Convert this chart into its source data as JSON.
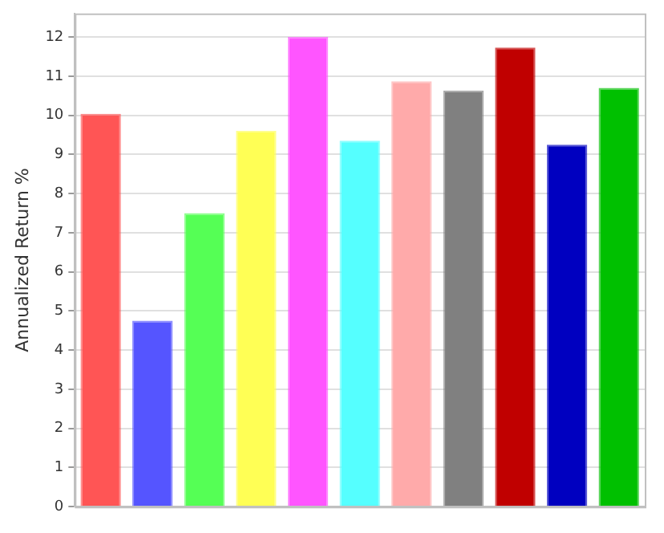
{
  "chart_data": {
    "type": "bar",
    "ylabel": "Annualized Return %",
    "categories": [
      null,
      null,
      null,
      null,
      null,
      null,
      null,
      null,
      null,
      null,
      null
    ],
    "values": [
      10.04,
      4.75,
      7.5,
      9.6,
      12.0,
      9.35,
      10.87,
      10.63,
      11.73,
      9.25,
      10.7
    ],
    "colors": [
      "#ff5555",
      "#5555ff",
      "#55ff55",
      "#ffff55",
      "#ff55ff",
      "#55ffff",
      "#ffaaaa",
      "#808080",
      "#c00000",
      "#0000c0",
      "#00c000"
    ],
    "ylim": [
      0,
      12.6
    ],
    "yticks": [
      0,
      1,
      2,
      3,
      4,
      5,
      6,
      7,
      8,
      9,
      10,
      11,
      12
    ],
    "grid": "y",
    "legend": false
  }
}
